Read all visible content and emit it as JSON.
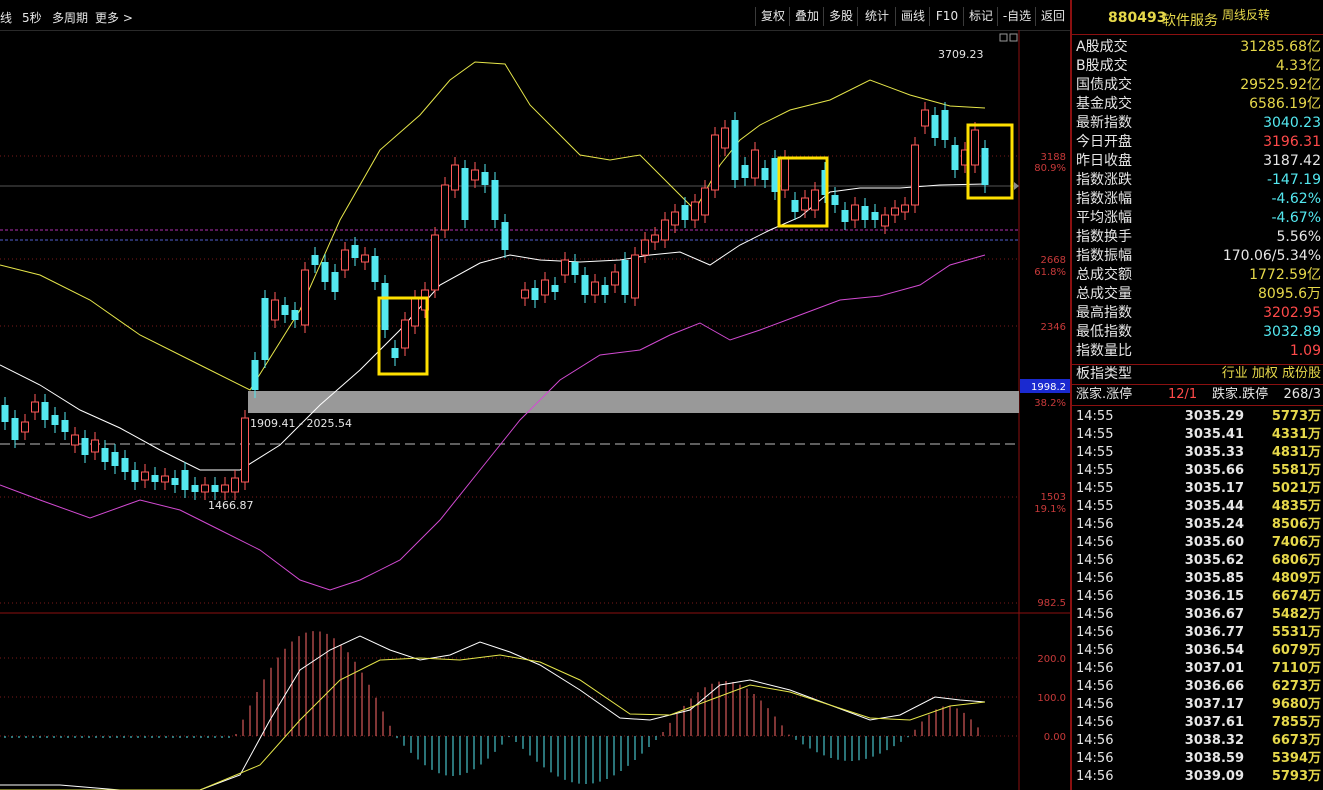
{
  "toolbar": {
    "left": [
      "线",
      "5秒",
      "多周期",
      "更多 >"
    ],
    "buttons": [
      "复权",
      "叠加",
      "多股",
      "统计",
      "画线",
      "F10",
      "标记",
      "-自选",
      "返回"
    ]
  },
  "chart_main": {
    "price_axis": [
      "3188",
      "80.9%",
      "2668",
      "61.8%",
      "2346",
      "1998.2",
      "38.2%",
      "1503",
      "19.1%",
      "982.5"
    ],
    "annotations": {
      "high": "3709.23",
      "low": "1466.87",
      "zone": "1909.41 - 2025.54"
    }
  },
  "chart_macd": {
    "axis": [
      "200.0",
      "100.0",
      "0.00"
    ]
  },
  "chart_data": {
    "type": "candlestick",
    "note_series": "weekly K-line with Bollinger bands and MACD sub-chart",
    "high_marker": 3709.23,
    "low_marker": 1466.87,
    "zone": [
      1909.41,
      2025.54
    ],
    "y_axis_labels": [
      3188,
      2668,
      2346,
      1998.2,
      1503,
      982.5
    ],
    "fib_labels": [
      "80.9%",
      "61.8%",
      "38.2%",
      "19.1%"
    ],
    "macd_axis": [
      200.0,
      100.0,
      0.0
    ]
  },
  "panel": {
    "code": "880493",
    "name": "软件服务",
    "badge": "周线反转",
    "stats": [
      {
        "label": "A股成交",
        "value": "31285.68亿",
        "color": "#e6d84a"
      },
      {
        "label": "B股成交",
        "value": "4.33亿",
        "color": "#e6d84a"
      },
      {
        "label": "国债成交",
        "value": "29525.92亿",
        "color": "#e6d84a"
      },
      {
        "label": "基金成交",
        "value": "6586.19亿",
        "color": "#e6d84a"
      },
      {
        "label": "最新指数",
        "value": "3040.23",
        "color": "#54e8f0"
      },
      {
        "label": "今日开盘",
        "value": "3196.31",
        "color": "#ff4a4a"
      },
      {
        "label": "昨日收盘",
        "value": "3187.42",
        "color": "#e6e6e6"
      },
      {
        "label": "指数涨跌",
        "value": "-147.19",
        "color": "#54e8f0"
      },
      {
        "label": "指数涨幅",
        "value": "-4.62%",
        "color": "#54e8f0"
      },
      {
        "label": "平均涨幅",
        "value": "-4.67%",
        "color": "#54e8f0"
      },
      {
        "label": "指数换手",
        "value": "5.56%",
        "color": "#e6e6e6"
      },
      {
        "label": "指数振幅",
        "value": "170.06/5.34%",
        "color": "#e6e6e6"
      },
      {
        "label": "总成交额",
        "value": "1772.59亿",
        "color": "#e6d84a"
      },
      {
        "label": "总成交量",
        "value": "8095.6万",
        "color": "#e6d84a"
      },
      {
        "label": "最高指数",
        "value": "3202.95",
        "color": "#ff4a4a"
      },
      {
        "label": "最低指数",
        "value": "3032.89",
        "color": "#54e8f0"
      },
      {
        "label": "指数量比",
        "value": "1.09",
        "color": "#ff4a4a"
      }
    ],
    "type_label": "板指类型",
    "type_links": "行业 加权 成份股",
    "limit_label": "涨家.涨停",
    "limit_up": "12/1",
    "limit_label2": "跌家.跌停",
    "limit_down": "268/3",
    "ticks": [
      {
        "t": "14:55",
        "p": "3035.29",
        "v": "5773万"
      },
      {
        "t": "14:55",
        "p": "3035.41",
        "v": "4331万"
      },
      {
        "t": "14:55",
        "p": "3035.33",
        "v": "4831万"
      },
      {
        "t": "14:55",
        "p": "3035.66",
        "v": "5581万"
      },
      {
        "t": "14:55",
        "p": "3035.17",
        "v": "5021万"
      },
      {
        "t": "14:55",
        "p": "3035.44",
        "v": "4835万"
      },
      {
        "t": "14:56",
        "p": "3035.24",
        "v": "8506万"
      },
      {
        "t": "14:56",
        "p": "3035.60",
        "v": "7406万"
      },
      {
        "t": "14:56",
        "p": "3035.62",
        "v": "6806万"
      },
      {
        "t": "14:56",
        "p": "3035.85",
        "v": "4809万"
      },
      {
        "t": "14:56",
        "p": "3036.15",
        "v": "6674万"
      },
      {
        "t": "14:56",
        "p": "3036.67",
        "v": "5482万"
      },
      {
        "t": "14:56",
        "p": "3036.77",
        "v": "5531万"
      },
      {
        "t": "14:56",
        "p": "3036.54",
        "v": "6079万"
      },
      {
        "t": "14:56",
        "p": "3037.01",
        "v": "7110万"
      },
      {
        "t": "14:56",
        "p": "3036.66",
        "v": "6273万"
      },
      {
        "t": "14:56",
        "p": "3037.17",
        "v": "9680万"
      },
      {
        "t": "14:56",
        "p": "3037.61",
        "v": "7855万"
      },
      {
        "t": "14:56",
        "p": "3038.32",
        "v": "6673万"
      },
      {
        "t": "14:56",
        "p": "3038.59",
        "v": "5394万"
      },
      {
        "t": "14:56",
        "p": "3039.09",
        "v": "5793万"
      }
    ]
  }
}
